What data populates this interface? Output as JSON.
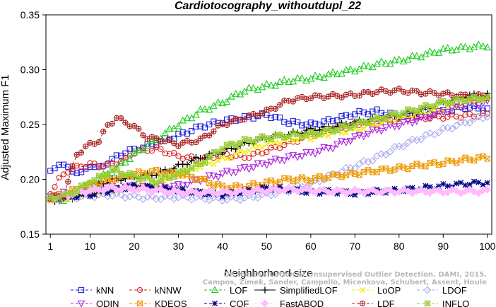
{
  "chart_data": {
    "type": "line",
    "title": "Cardiotocography_withoutdupl_22",
    "xlabel": "Neighborhood size",
    "ylabel": "Adjusted Maximum F1",
    "xlim": [
      0,
      101
    ],
    "ylim": [
      0.15,
      0.35
    ],
    "xticks": [
      1,
      10,
      20,
      30,
      40,
      50,
      60,
      70,
      80,
      90,
      100
    ],
    "yticks": [
      0.15,
      0.2,
      0.25,
      0.3,
      0.35
    ],
    "ytick_labels": [
      "0.15",
      "0.20",
      "0.25",
      "0.30",
      "0.35"
    ],
    "grid": false,
    "legend_position": "bottom",
    "series": [
      {
        "name": "kNN",
        "color": "#2222dd",
        "marker": "square",
        "dash": "4,3",
        "points": [
          [
            1,
            0.206
          ],
          [
            3,
            0.215
          ],
          [
            5,
            0.21
          ],
          [
            8,
            0.205
          ],
          [
            10,
            0.213
          ],
          [
            12,
            0.21
          ],
          [
            15,
            0.218
          ],
          [
            18,
            0.225
          ],
          [
            20,
            0.227
          ],
          [
            25,
            0.233
          ],
          [
            30,
            0.24
          ],
          [
            35,
            0.248
          ],
          [
            40,
            0.253
          ],
          [
            45,
            0.256
          ],
          [
            50,
            0.259
          ],
          [
            55,
            0.252
          ],
          [
            60,
            0.25
          ],
          [
            65,
            0.254
          ],
          [
            70,
            0.26
          ],
          [
            75,
            0.262
          ],
          [
            80,
            0.258
          ],
          [
            85,
            0.259
          ],
          [
            90,
            0.262
          ],
          [
            95,
            0.266
          ],
          [
            100,
            0.264
          ]
        ]
      },
      {
        "name": "kNNW",
        "color": "#dd2222",
        "marker": "circle",
        "dash": "4,3",
        "points": [
          [
            1,
            0.188
          ],
          [
            3,
            0.2
          ],
          [
            5,
            0.208
          ],
          [
            8,
            0.212
          ],
          [
            10,
            0.214
          ],
          [
            12,
            0.212
          ],
          [
            15,
            0.214
          ],
          [
            18,
            0.218
          ],
          [
            20,
            0.225
          ],
          [
            25,
            0.228
          ],
          [
            30,
            0.221
          ],
          [
            35,
            0.218
          ],
          [
            40,
            0.223
          ],
          [
            45,
            0.22
          ],
          [
            50,
            0.226
          ],
          [
            55,
            0.233
          ],
          [
            60,
            0.24
          ],
          [
            65,
            0.245
          ],
          [
            70,
            0.25
          ],
          [
            75,
            0.252
          ],
          [
            80,
            0.255
          ],
          [
            85,
            0.256
          ],
          [
            90,
            0.257
          ],
          [
            95,
            0.258
          ],
          [
            100,
            0.259
          ]
        ]
      },
      {
        "name": "LOF",
        "color": "#22cc22",
        "marker": "triangle",
        "dash": "4,3",
        "points": [
          [
            1,
            0.183
          ],
          [
            4,
            0.182
          ],
          [
            7,
            0.187
          ],
          [
            10,
            0.196
          ],
          [
            13,
            0.203
          ],
          [
            16,
            0.21
          ],
          [
            20,
            0.223
          ],
          [
            25,
            0.236
          ],
          [
            30,
            0.25
          ],
          [
            35,
            0.262
          ],
          [
            40,
            0.27
          ],
          [
            45,
            0.281
          ],
          [
            50,
            0.285
          ],
          [
            55,
            0.29
          ],
          [
            60,
            0.292
          ],
          [
            65,
            0.296
          ],
          [
            70,
            0.3
          ],
          [
            75,
            0.305
          ],
          [
            80,
            0.308
          ],
          [
            85,
            0.313
          ],
          [
            90,
            0.318
          ],
          [
            95,
            0.32
          ],
          [
            100,
            0.322
          ]
        ]
      },
      {
        "name": "SimplifiedLOF",
        "color": "#000000",
        "marker": "plus",
        "dash": "none",
        "points": [
          [
            1,
            0.181
          ],
          [
            4,
            0.181
          ],
          [
            7,
            0.185
          ],
          [
            10,
            0.192
          ],
          [
            13,
            0.197
          ],
          [
            16,
            0.2
          ],
          [
            20,
            0.202
          ],
          [
            25,
            0.205
          ],
          [
            30,
            0.212
          ],
          [
            35,
            0.22
          ],
          [
            40,
            0.225
          ],
          [
            45,
            0.232
          ],
          [
            50,
            0.238
          ],
          [
            55,
            0.241
          ],
          [
            60,
            0.245
          ],
          [
            65,
            0.248
          ],
          [
            70,
            0.252
          ],
          [
            75,
            0.255
          ],
          [
            80,
            0.258
          ],
          [
            85,
            0.263
          ],
          [
            90,
            0.27
          ],
          [
            95,
            0.276
          ],
          [
            100,
            0.277
          ]
        ]
      },
      {
        "name": "LoOP",
        "color": "#eeee00",
        "marker": "cross",
        "dash": "4,3",
        "points": [
          [
            1,
            0.182
          ],
          [
            5,
            0.183
          ],
          [
            10,
            0.187
          ],
          [
            15,
            0.19
          ],
          [
            20,
            0.193
          ],
          [
            25,
            0.196
          ],
          [
            30,
            0.205
          ],
          [
            35,
            0.212
          ],
          [
            40,
            0.218
          ],
          [
            45,
            0.226
          ],
          [
            50,
            0.232
          ],
          [
            55,
            0.236
          ],
          [
            60,
            0.238
          ],
          [
            65,
            0.242
          ],
          [
            70,
            0.245
          ],
          [
            75,
            0.25
          ],
          [
            80,
            0.255
          ],
          [
            85,
            0.26
          ],
          [
            90,
            0.264
          ],
          [
            95,
            0.27
          ],
          [
            100,
            0.274
          ]
        ]
      },
      {
        "name": "LDOF",
        "color": "#aaaaee",
        "marker": "diamond",
        "dash": "4,3",
        "points": [
          [
            1,
            0.182
          ],
          [
            5,
            0.183
          ],
          [
            10,
            0.185
          ],
          [
            15,
            0.186
          ],
          [
            20,
            0.184
          ],
          [
            25,
            0.183
          ],
          [
            30,
            0.184
          ],
          [
            35,
            0.183
          ],
          [
            40,
            0.182
          ],
          [
            45,
            0.183
          ],
          [
            50,
            0.186
          ],
          [
            55,
            0.19
          ],
          [
            60,
            0.196
          ],
          [
            65,
            0.204
          ],
          [
            70,
            0.212
          ],
          [
            75,
            0.22
          ],
          [
            80,
            0.23
          ],
          [
            85,
            0.238
          ],
          [
            90,
            0.245
          ],
          [
            95,
            0.252
          ],
          [
            100,
            0.258
          ]
        ]
      },
      {
        "name": "ODIN",
        "color": "#aa22dd",
        "marker": "triangle-down",
        "dash": "4,3",
        "points": [
          [
            1,
            0.184
          ],
          [
            5,
            0.188
          ],
          [
            10,
            0.19
          ],
          [
            15,
            0.192
          ],
          [
            20,
            0.193
          ],
          [
            25,
            0.192
          ],
          [
            30,
            0.194
          ],
          [
            35,
            0.2
          ],
          [
            40,
            0.205
          ],
          [
            45,
            0.21
          ],
          [
            50,
            0.215
          ],
          [
            55,
            0.22
          ],
          [
            60,
            0.224
          ],
          [
            65,
            0.23
          ],
          [
            70,
            0.238
          ],
          [
            75,
            0.245
          ],
          [
            80,
            0.25
          ],
          [
            85,
            0.255
          ],
          [
            90,
            0.262
          ],
          [
            95,
            0.268
          ],
          [
            100,
            0.27
          ]
        ]
      },
      {
        "name": "KDEOS",
        "color": "#ee9900",
        "marker": "square-x",
        "dash": "4,3",
        "points": [
          [
            1,
            0.183
          ],
          [
            5,
            0.188
          ],
          [
            10,
            0.195
          ],
          [
            15,
            0.2
          ],
          [
            20,
            0.205
          ],
          [
            25,
            0.207
          ],
          [
            30,
            0.205
          ],
          [
            35,
            0.2
          ],
          [
            40,
            0.193
          ],
          [
            45,
            0.193
          ],
          [
            50,
            0.197
          ],
          [
            55,
            0.2
          ],
          [
            60,
            0.2
          ],
          [
            65,
            0.203
          ],
          [
            70,
            0.205
          ],
          [
            75,
            0.208
          ],
          [
            80,
            0.21
          ],
          [
            85,
            0.213
          ],
          [
            90,
            0.215
          ],
          [
            95,
            0.218
          ],
          [
            100,
            0.22
          ]
        ]
      },
      {
        "name": "COF",
        "color": "#000088",
        "marker": "star",
        "dash": "4,3",
        "points": [
          [
            1,
            0.182
          ],
          [
            5,
            0.184
          ],
          [
            10,
            0.186
          ],
          [
            15,
            0.19
          ],
          [
            20,
            0.194
          ],
          [
            25,
            0.192
          ],
          [
            30,
            0.19
          ],
          [
            35,
            0.188
          ],
          [
            40,
            0.186
          ],
          [
            45,
            0.189
          ],
          [
            50,
            0.192
          ],
          [
            55,
            0.191
          ],
          [
            60,
            0.188
          ],
          [
            65,
            0.189
          ],
          [
            70,
            0.187
          ],
          [
            75,
            0.189
          ],
          [
            80,
            0.19
          ],
          [
            85,
            0.192
          ],
          [
            90,
            0.194
          ],
          [
            95,
            0.196
          ],
          [
            100,
            0.197
          ]
        ]
      },
      {
        "name": "FastABOD",
        "color": "#ffbbff",
        "marker": "diamond-filled",
        "dash": "4,3",
        "points": [
          [
            1,
            0.183
          ],
          [
            5,
            0.186
          ],
          [
            10,
            0.19
          ],
          [
            15,
            0.192
          ],
          [
            20,
            0.191
          ],
          [
            25,
            0.19
          ],
          [
            30,
            0.188
          ],
          [
            35,
            0.188
          ],
          [
            40,
            0.188
          ],
          [
            45,
            0.189
          ],
          [
            50,
            0.19
          ],
          [
            55,
            0.191
          ],
          [
            60,
            0.19
          ],
          [
            65,
            0.189
          ],
          [
            70,
            0.189
          ],
          [
            75,
            0.189
          ],
          [
            80,
            0.189
          ],
          [
            85,
            0.189
          ],
          [
            90,
            0.189
          ],
          [
            95,
            0.189
          ],
          [
            100,
            0.189
          ]
        ]
      },
      {
        "name": "LDF",
        "color": "#aa2222",
        "marker": "circle-plus",
        "dash": "4,3",
        "points": [
          [
            1,
            0.183
          ],
          [
            4,
            0.185
          ],
          [
            7,
            0.223
          ],
          [
            10,
            0.232
          ],
          [
            12,
            0.235
          ],
          [
            14,
            0.249
          ],
          [
            16,
            0.256
          ],
          [
            18,
            0.252
          ],
          [
            20,
            0.248
          ],
          [
            23,
            0.238
          ],
          [
            26,
            0.236
          ],
          [
            30,
            0.232
          ],
          [
            35,
            0.236
          ],
          [
            40,
            0.25
          ],
          [
            45,
            0.256
          ],
          [
            50,
            0.262
          ],
          [
            55,
            0.272
          ],
          [
            60,
            0.275
          ],
          [
            65,
            0.276
          ],
          [
            70,
            0.277
          ],
          [
            75,
            0.28
          ],
          [
            80,
            0.281
          ],
          [
            85,
            0.279
          ],
          [
            90,
            0.278
          ],
          [
            95,
            0.276
          ],
          [
            100,
            0.276
          ]
        ]
      },
      {
        "name": "INFLO",
        "color": "#99cc33",
        "marker": "square-star",
        "dash": "4,3",
        "points": [
          [
            1,
            0.182
          ],
          [
            5,
            0.186
          ],
          [
            10,
            0.197
          ],
          [
            15,
            0.208
          ],
          [
            20,
            0.203
          ],
          [
            25,
            0.198
          ],
          [
            30,
            0.205
          ],
          [
            35,
            0.214
          ],
          [
            40,
            0.229
          ],
          [
            45,
            0.235
          ],
          [
            50,
            0.238
          ],
          [
            55,
            0.24
          ],
          [
            60,
            0.241
          ],
          [
            65,
            0.245
          ],
          [
            70,
            0.25
          ],
          [
            75,
            0.255
          ],
          [
            80,
            0.26
          ],
          [
            85,
            0.265
          ],
          [
            90,
            0.27
          ],
          [
            95,
            0.273
          ],
          [
            100,
            0.274
          ]
        ]
      }
    ],
    "watermark": [
      "Campos, Zimek, Sander, Campello, Micenkova, Schubert, Assent, Houle",
      "On the Evaluation of Unsupervised Outlier Detection. DAMI, 2015."
    ]
  }
}
